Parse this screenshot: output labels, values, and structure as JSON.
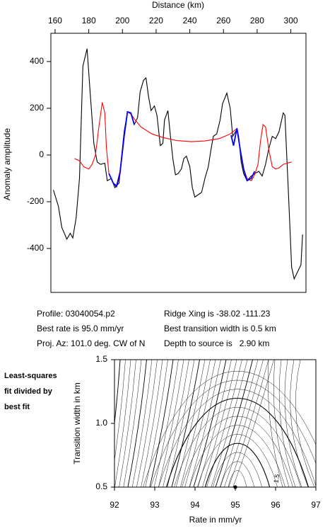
{
  "chart_data": [
    {
      "type": "line",
      "xlabel": "Distance (km)",
      "ylabel": "Anomaly amplitude",
      "xlim": [
        157.5,
        309
      ],
      "xticks": [
        160,
        180,
        200,
        220,
        240,
        260,
        280,
        300
      ],
      "ylim": [
        -588,
        521
      ],
      "yticks": [
        400,
        200,
        0,
        -200,
        -400
      ],
      "series": [
        {
          "color": "#000000",
          "x": [
            159,
            162,
            164,
            167,
            169,
            170.5,
            172.5,
            174.5,
            176.5,
            179,
            181,
            183,
            185,
            187,
            189.5,
            191,
            193.5,
            195.5,
            198,
            199,
            201,
            203,
            205,
            207,
            209,
            210.5,
            212.5,
            214,
            215.5,
            217,
            219,
            220.5,
            222.5,
            224,
            225,
            227,
            228.5,
            230,
            231.5,
            233,
            235,
            236.5,
            238,
            240,
            241.5,
            243,
            245,
            247,
            249,
            251,
            252.5,
            254,
            256,
            258,
            259.5,
            262,
            264,
            265.5,
            268,
            269,
            270.5,
            272,
            274,
            276.5,
            278.5,
            281,
            283,
            285,
            287,
            289,
            291,
            293,
            295.5,
            296.5,
            298.5,
            300.5,
            302,
            304,
            306,
            307
          ],
          "values": [
            -150,
            -220,
            -310,
            -360,
            -335,
            -355,
            -270,
            -100,
            380,
            455,
            250,
            50,
            -30,
            -40,
            -35,
            -110,
            -100,
            -140,
            -120,
            -40,
            100,
            185,
            180,
            130,
            160,
            270,
            320,
            330,
            250,
            190,
            210,
            170,
            40,
            50,
            150,
            190,
            80,
            -20,
            -85,
            -80,
            -60,
            -15,
            -5,
            -50,
            -140,
            -180,
            -170,
            -160,
            -100,
            -50,
            20,
            80,
            90,
            150,
            220,
            265,
            200,
            80,
            110,
            80,
            -30,
            -80,
            -110,
            -90,
            -80,
            -70,
            -90,
            -40,
            30,
            80,
            70,
            100,
            180,
            170,
            -150,
            -480,
            -530,
            -500,
            -470,
            -340
          ]
        },
        {
          "color": "#ff0000",
          "x": [
            171.5,
            174.5,
            177,
            180,
            182,
            184,
            186,
            188,
            189.5,
            190.5,
            192,
            194.5,
            196.5,
            198.5,
            201,
            203,
            205,
            207,
            211,
            217.5,
            224,
            232,
            241,
            249,
            257.5,
            264,
            267.5,
            268.5,
            270,
            272,
            274,
            276.5,
            278.5,
            280.5,
            282,
            283.5,
            285,
            287,
            289,
            291,
            293,
            295.5,
            300.5
          ],
          "values": [
            -15,
            -25,
            -50,
            -60,
            -40,
            0,
            120,
            225,
            180,
            30,
            -80,
            -120,
            -130,
            -70,
            80,
            185,
            175,
            155,
            120,
            90,
            75,
            62,
            57,
            60,
            70,
            90,
            110,
            100,
            20,
            -60,
            -100,
            -110,
            -85,
            -40,
            60,
            130,
            120,
            20,
            -50,
            -60,
            -55,
            -40,
            -30
          ]
        },
        {
          "color": "#0000ff",
          "x": [
            192,
            194.5,
            196.5,
            198.5,
            201,
            203,
            205,
            207,
            null,
            264.5,
            266,
            268,
            270,
            272,
            274,
            276.5,
            278.5
          ],
          "values": [
            -80,
            -120,
            -135,
            -80,
            80,
            185,
            180,
            130,
            null,
            85,
            40,
            115,
            20,
            -60,
            -110,
            -100,
            -70
          ]
        }
      ]
    },
    {
      "type": "contour",
      "xlabel": "Rate in mm/yr",
      "ylabel": "Transition width in km",
      "xlim": [
        92,
        97
      ],
      "xticks": [
        92,
        93,
        94,
        95,
        96,
        97
      ],
      "ylim": [
        0.5,
        1.5
      ],
      "yticks": [
        0.5,
        {
          "value": 1.0,
          "label": "1.0"
        },
        1.5
      ],
      "best_point": {
        "x": 95,
        "y": 0.5
      },
      "contour_labels": [
        "1.5"
      ],
      "side_note": [
        "Least-squares",
        "fit divided by",
        "best fit"
      ]
    }
  ],
  "annotations": [
    "Profile: 03040054.p2",
    "Best rate is 95.0 mm/yr",
    "Proj. Az: 101.0 deg. CW of N",
    "Ridge Xing is -38.02 -111.23",
    "Best transition width is 0.5 km",
    "Depth to source is   2.90 km"
  ]
}
